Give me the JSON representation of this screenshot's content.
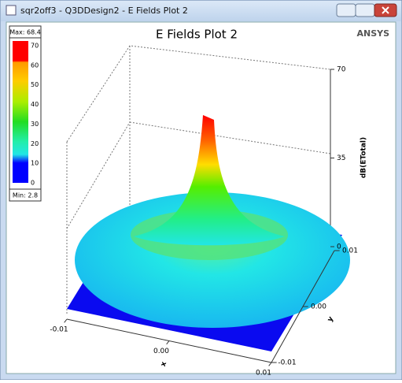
{
  "window": {
    "title": "sqr2off3 - Q3DDesign2 - E Fields Plot 2"
  },
  "plot": {
    "title": "E Fields Plot 2",
    "brand": "ANSYS"
  },
  "legend": {
    "max": "Max: 68.4",
    "min": "Min: 2.8",
    "ticks": [
      0,
      10,
      20,
      30,
      40,
      50,
      60,
      70
    ]
  },
  "z_axis": {
    "label": "dB(ETotal)",
    "ticks": [
      0,
      35,
      70
    ]
  },
  "x_axis": {
    "label": "x",
    "ticks": [
      {
        "value": -0.01,
        "label": "-0.01"
      },
      {
        "value": 0,
        "label": "0.00"
      },
      {
        "value": 0.01,
        "label": "0.01"
      }
    ]
  },
  "y_axis": {
    "label": "y",
    "ticks": [
      {
        "value": -0.01,
        "label": "-0.01"
      },
      {
        "value": 0,
        "label": "0.00"
      },
      {
        "value": 0.01,
        "label": "0.01"
      }
    ]
  }
}
